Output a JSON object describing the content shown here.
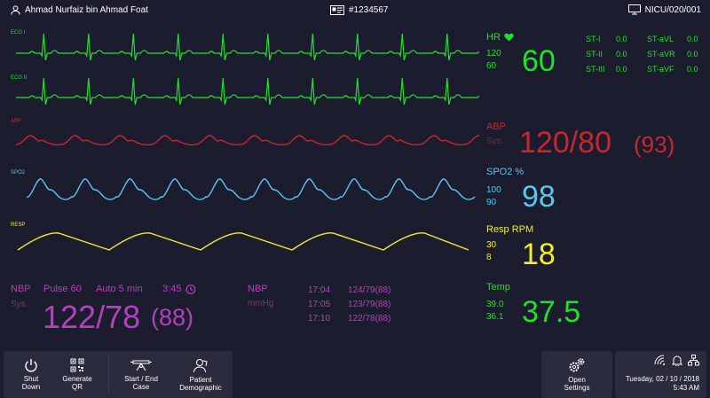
{
  "header": {
    "patient_name": "Ahmad Nurfaiz bin Ahmad Foat",
    "patient_id": "#1234567",
    "bed": "NICU/020/001"
  },
  "waves": {
    "ecg1": "ECG I",
    "ecg2": "ECG II",
    "abp": "ABP",
    "spo2": "SPO2",
    "resp": "RESP"
  },
  "hr": {
    "label": "HR",
    "high": "120",
    "low": "60",
    "value": "60"
  },
  "st": [
    {
      "label": "ST-I",
      "value": "0.0"
    },
    {
      "label": "ST-aVL",
      "value": "0.0"
    },
    {
      "label": "ST-II",
      "value": "0.0"
    },
    {
      "label": "ST-aVR",
      "value": "0.0"
    },
    {
      "label": "ST-III",
      "value": "0.0"
    },
    {
      "label": "ST-aVF",
      "value": "0.0"
    }
  ],
  "abp": {
    "label": "ABP",
    "sub": "Sys.",
    "value": "120/80",
    "mean": "(93)"
  },
  "spo2": {
    "label": "SPO2 %",
    "high": "100",
    "low": "90",
    "value": "98"
  },
  "resp": {
    "label": "Resp RPM",
    "high": "30",
    "low": "8",
    "value": "18"
  },
  "temp": {
    "label": "Temp",
    "high": "39.0",
    "low": "36.1",
    "value": "37.5"
  },
  "nbp": {
    "label": "NBP",
    "pulse": "Pulse 60",
    "mode": "Auto 5 min",
    "time": "3:45",
    "sub": "Sys.",
    "value": "122/78",
    "mean": "(88)",
    "history_label": "NBP",
    "history_unit": "mmHg",
    "history": [
      {
        "time": "17:04",
        "value": "124/79(88)"
      },
      {
        "time": "17:05",
        "value": "123/79(88)"
      },
      {
        "time": "17:10",
        "value": "122/78(88)"
      }
    ]
  },
  "toolbar": {
    "shutdown": "Shut Down",
    "qr": "Generate QR",
    "case": "Start / End Case",
    "demographic": "Patient Demographic",
    "settings": "Open Settings"
  },
  "status": {
    "date": "Tuesday, 02 / 10 / 2018",
    "time": "5:43 AM"
  },
  "colors": {
    "ecg": "#22e02a",
    "abp": "#c7262e",
    "spo2": "#5cc5ef",
    "resp": "#f2ee2b",
    "nbp": "#b63fbe",
    "background": "#1b1d2e"
  }
}
